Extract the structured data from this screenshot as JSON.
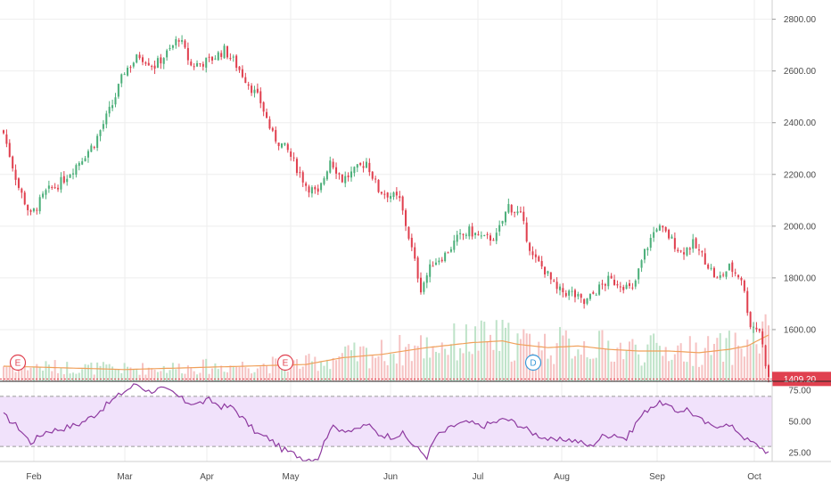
{
  "colors": {
    "up": "#4caf7a",
    "down": "#e0404f",
    "volume_up": "#bfe3c9",
    "volume_down": "#f6c3c3",
    "ma": "#f0a05a",
    "rsi": "#8e3aa0",
    "rsi_band": "#f1e2fb",
    "grid": "#eeeeee",
    "price_line": "#e0404f",
    "earnings_marker": "#e0404f",
    "dividend_marker": "#3a9ad9"
  },
  "price_axis": {
    "ticks": [
      "2800.00",
      "2600.00",
      "2400.00",
      "2200.00",
      "2000.00",
      "1800.00",
      "1600.00"
    ],
    "range": [
      1400,
      2840
    ],
    "current_price_label": "1409.20",
    "current_price": 1409.2
  },
  "rsi_axis": {
    "ticks": [
      "75.00",
      "50.00",
      "25.00"
    ],
    "range": [
      18,
      82
    ],
    "band": [
      30,
      70
    ]
  },
  "x_axis": {
    "months": [
      "Feb",
      "Mar",
      "Apr",
      "May",
      "Jun",
      "Jul",
      "Aug",
      "Sep",
      "Oct"
    ]
  },
  "events": [
    {
      "type": "earnings-icon",
      "label": "E",
      "month": "Jan"
    },
    {
      "type": "earnings-icon",
      "label": "E",
      "month": "May"
    },
    {
      "type": "dividend-icon",
      "label": "D",
      "month": "Jul"
    }
  ],
  "chart_data": {
    "type": "candlestick",
    "x": "trading days, Jan–Oct",
    "price_anchors": [
      [
        0,
        2360
      ],
      [
        5,
        2150
      ],
      [
        9,
        2040
      ],
      [
        14,
        2130
      ],
      [
        19,
        2170
      ],
      [
        25,
        2250
      ],
      [
        30,
        2320
      ],
      [
        36,
        2470
      ],
      [
        40,
        2600
      ],
      [
        45,
        2660
      ],
      [
        50,
        2620
      ],
      [
        55,
        2680
      ],
      [
        58,
        2730
      ],
      [
        62,
        2620
      ],
      [
        68,
        2640
      ],
      [
        73,
        2680
      ],
      [
        76,
        2640
      ],
      [
        80,
        2570
      ],
      [
        85,
        2480
      ],
      [
        89,
        2350
      ],
      [
        94,
        2290
      ],
      [
        100,
        2160
      ],
      [
        104,
        2120
      ],
      [
        108,
        2260
      ],
      [
        112,
        2180
      ],
      [
        116,
        2210
      ],
      [
        120,
        2250
      ],
      [
        124,
        2140
      ],
      [
        128,
        2120
      ],
      [
        131,
        2100
      ],
      [
        134,
        1960
      ],
      [
        138,
        1760
      ],
      [
        142,
        1860
      ],
      [
        146,
        1890
      ],
      [
        150,
        1950
      ],
      [
        154,
        1980
      ],
      [
        159,
        1950
      ],
      [
        163,
        1960
      ],
      [
        167,
        2080
      ],
      [
        171,
        2040
      ],
      [
        175,
        1880
      ],
      [
        179,
        1830
      ],
      [
        183,
        1750
      ],
      [
        188,
        1740
      ],
      [
        192,
        1700
      ],
      [
        196,
        1750
      ],
      [
        200,
        1790
      ],
      [
        204,
        1780
      ],
      [
        208,
        1750
      ],
      [
        212,
        1900
      ],
      [
        216,
        2000
      ],
      [
        220,
        1960
      ],
      [
        224,
        1900
      ],
      [
        228,
        1930
      ],
      [
        232,
        1870
      ],
      [
        236,
        1790
      ],
      [
        240,
        1840
      ],
      [
        244,
        1800
      ],
      [
        247,
        1620
      ],
      [
        250,
        1600
      ],
      [
        253,
        1409.2
      ]
    ],
    "rsi_anchors": [
      [
        0,
        55
      ],
      [
        5,
        45
      ],
      [
        9,
        33
      ],
      [
        14,
        42
      ],
      [
        19,
        44
      ],
      [
        25,
        48
      ],
      [
        30,
        55
      ],
      [
        36,
        67
      ],
      [
        40,
        74
      ],
      [
        44,
        80
      ],
      [
        48,
        74
      ],
      [
        52,
        76
      ],
      [
        56,
        73
      ],
      [
        60,
        66
      ],
      [
        64,
        64
      ],
      [
        68,
        67
      ],
      [
        72,
        62
      ],
      [
        76,
        61
      ],
      [
        80,
        50
      ],
      [
        84,
        40
      ],
      [
        88,
        36
      ],
      [
        92,
        28
      ],
      [
        96,
        24
      ],
      [
        100,
        20
      ],
      [
        104,
        21
      ],
      [
        108,
        45
      ],
      [
        112,
        44
      ],
      [
        116,
        42
      ],
      [
        120,
        48
      ],
      [
        124,
        40
      ],
      [
        128,
        38
      ],
      [
        132,
        40
      ],
      [
        136,
        30
      ],
      [
        140,
        22
      ],
      [
        143,
        38
      ],
      [
        146,
        42
      ],
      [
        150,
        48
      ],
      [
        154,
        49
      ],
      [
        158,
        46
      ],
      [
        162,
        49
      ],
      [
        166,
        52
      ],
      [
        170,
        48
      ],
      [
        174,
        42
      ],
      [
        178,
        38
      ],
      [
        182,
        34
      ],
      [
        186,
        36
      ],
      [
        190,
        34
      ],
      [
        194,
        30
      ],
      [
        198,
        38
      ],
      [
        202,
        40
      ],
      [
        206,
        36
      ],
      [
        210,
        52
      ],
      [
        214,
        62
      ],
      [
        218,
        65
      ],
      [
        222,
        58
      ],
      [
        226,
        60
      ],
      [
        230,
        52
      ],
      [
        234,
        46
      ],
      [
        238,
        48
      ],
      [
        242,
        44
      ],
      [
        246,
        35
      ],
      [
        250,
        30
      ],
      [
        253,
        25
      ]
    ],
    "volume_ma_anchors": [
      [
        0,
        0.18
      ],
      [
        20,
        0.16
      ],
      [
        40,
        0.14
      ],
      [
        60,
        0.16
      ],
      [
        80,
        0.18
      ],
      [
        100,
        0.2
      ],
      [
        112,
        0.28
      ],
      [
        125,
        0.32
      ],
      [
        140,
        0.4
      ],
      [
        155,
        0.46
      ],
      [
        165,
        0.48
      ],
      [
        170,
        0.44
      ],
      [
        180,
        0.4
      ],
      [
        190,
        0.42
      ],
      [
        200,
        0.38
      ],
      [
        210,
        0.36
      ],
      [
        220,
        0.36
      ],
      [
        230,
        0.34
      ],
      [
        240,
        0.38
      ],
      [
        246,
        0.42
      ],
      [
        253,
        0.55
      ]
    ]
  }
}
